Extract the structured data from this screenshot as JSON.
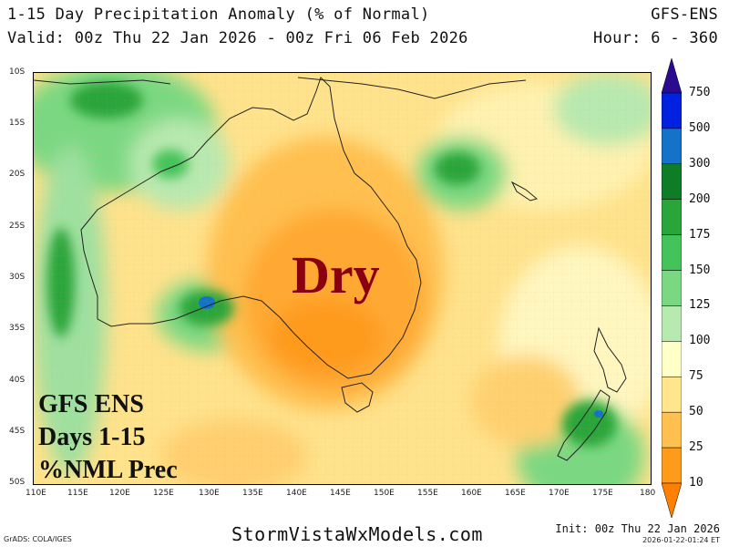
{
  "header": {
    "title": "1-15 Day Precipitation Anomaly (% of Normal)",
    "model": "GFS-ENS",
    "valid": "Valid: 00z Thu 22 Jan 2026 - 00z Fri 06 Feb 2026",
    "hours": "Hour: 6 - 360"
  },
  "map": {
    "lat_labels": [
      "10S",
      "15S",
      "20S",
      "25S",
      "30S",
      "35S",
      "40S",
      "45S",
      "50S"
    ],
    "lon_labels": [
      "110E",
      "115E",
      "120E",
      "125E",
      "130E",
      "135E",
      "140E",
      "145E",
      "150E",
      "155E",
      "160E",
      "165E",
      "170E",
      "175E",
      "180"
    ],
    "annotation": "Dry",
    "info_lines": [
      "GFS ENS",
      "Days 1-15",
      "%NML Prec"
    ]
  },
  "colorbar": {
    "labels": [
      "750",
      "500",
      "300",
      "200",
      "175",
      "150",
      "125",
      "100",
      "75",
      "50",
      "25",
      "10"
    ],
    "colors": [
      "#2a0b90",
      "#0022e0",
      "#1473c8",
      "#0f7d28",
      "#2aa53a",
      "#44c35a",
      "#7ad882",
      "#b8e9b0",
      "#ffffc8",
      "#ffe68c",
      "#ffc050",
      "#ff9a1a",
      "#ff8000"
    ]
  },
  "footer": {
    "grads": "GrADS: COLA/IGES",
    "site": "StormVistaWxModels.com",
    "init": "Init: 00z Thu 22 Jan 2026",
    "stamp": "2026-01-22-01:24 ET"
  }
}
